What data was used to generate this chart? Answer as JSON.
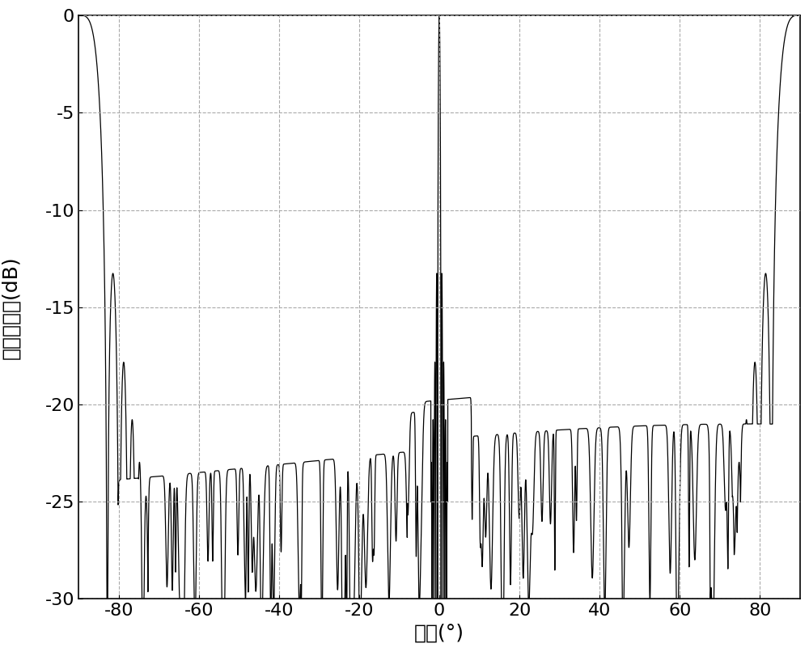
{
  "title": "",
  "xlabel": "角度(°)",
  "ylabel": "归一化增益(dB)",
  "xlim": [
    -90,
    90
  ],
  "ylim": [
    -30,
    0
  ],
  "xticks": [
    -80,
    -60,
    -40,
    -20,
    0,
    20,
    40,
    60,
    80
  ],
  "yticks": [
    0,
    -5,
    -10,
    -15,
    -20,
    -25,
    -30
  ],
  "grid_color": "#aaaaaa",
  "line_color": "#000000",
  "background_color": "#ffffff",
  "line_width": 0.9,
  "xlabel_fontsize": 18,
  "ylabel_fontsize": 18,
  "tick_fontsize": 16
}
